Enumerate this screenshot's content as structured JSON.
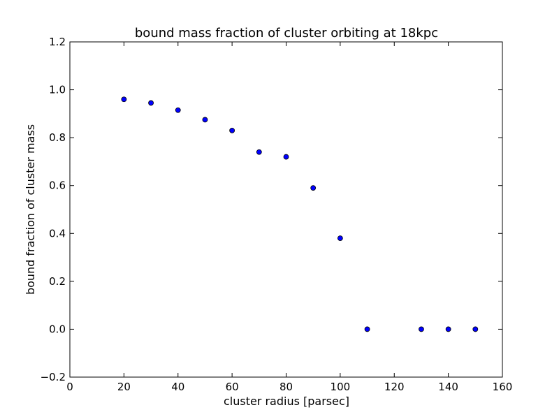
{
  "chart_data": {
    "type": "scatter",
    "title": "bound mass fraction of cluster orbiting at 18kpc",
    "xlabel": "cluster radius [parsec]",
    "ylabel": "bound fraction of cluster mass",
    "xlim": [
      0,
      160
    ],
    "ylim": [
      -0.2,
      1.2
    ],
    "xticks": [
      0,
      20,
      40,
      60,
      80,
      100,
      120,
      140,
      160
    ],
    "xtick_labels": [
      "0",
      "20",
      "40",
      "60",
      "80",
      "100",
      "120",
      "140",
      "160"
    ],
    "yticks": [
      -0.2,
      0.0,
      0.2,
      0.4,
      0.6,
      0.8,
      1.0,
      1.2
    ],
    "ytick_labels": [
      "−0.2",
      "0.0",
      "0.2",
      "0.4",
      "0.6",
      "0.8",
      "1.0",
      "1.2"
    ],
    "grid": false,
    "series": [
      {
        "x": [
          20,
          30,
          40,
          50,
          60,
          70,
          80,
          90,
          100,
          110,
          130,
          140,
          150
        ],
        "y": [
          0.96,
          0.945,
          0.915,
          0.875,
          0.83,
          0.74,
          0.72,
          0.59,
          0.38,
          0.0,
          0.0,
          0.0,
          0.0
        ],
        "color": "#0000ff"
      }
    ]
  }
}
